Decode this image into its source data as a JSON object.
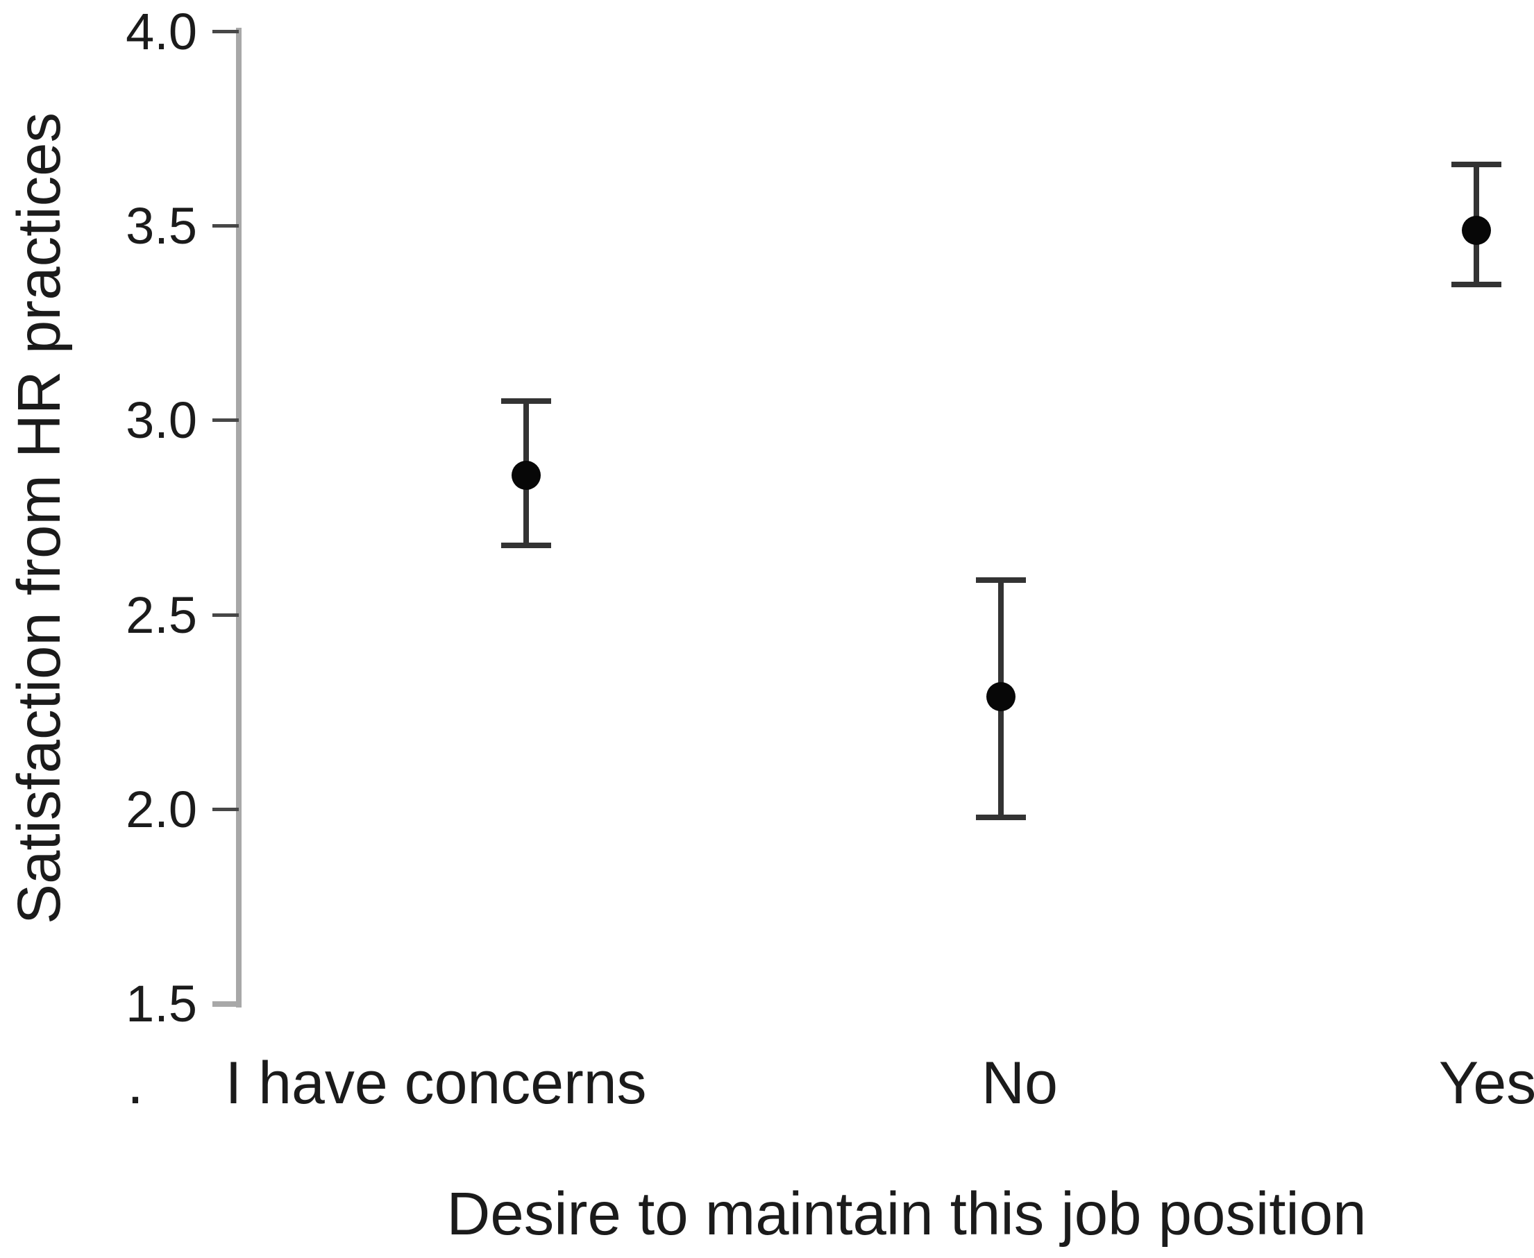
{
  "chart_data": {
    "type": "scatter",
    "subtype": "means-with-error-bars",
    "title": "",
    "xlabel": "Desire to maintain this job position",
    "ylabel": "Satisfaction from HR practices",
    "categories": [
      "I have concerns",
      "No",
      "Yes"
    ],
    "series": [
      {
        "name": "Mean satisfaction from HR practices",
        "values": [
          2.86,
          2.29,
          3.49
        ],
        "error_low": [
          2.68,
          1.98,
          3.35
        ],
        "error_high": [
          3.05,
          2.59,
          3.66
        ]
      }
    ],
    "ylim": [
      1.5,
      4.0
    ],
    "ytick_labels": [
      "4.0",
      "3.5",
      "3.0",
      "2.5",
      "2.0",
      "1.5"
    ],
    "ytick_values": [
      4.0,
      3.5,
      3.0,
      2.5,
      2.0,
      1.5
    ],
    "missing_category_label": ".",
    "grid": "off",
    "legend": "none",
    "marker": "filled-circle",
    "colors": {
      "marker": "#070707",
      "error_bar": "#333333",
      "tick_mark": "#474747",
      "axis_line": "#a8a8a8",
      "text": "#1b1b1b",
      "background": "#ffffff"
    }
  }
}
